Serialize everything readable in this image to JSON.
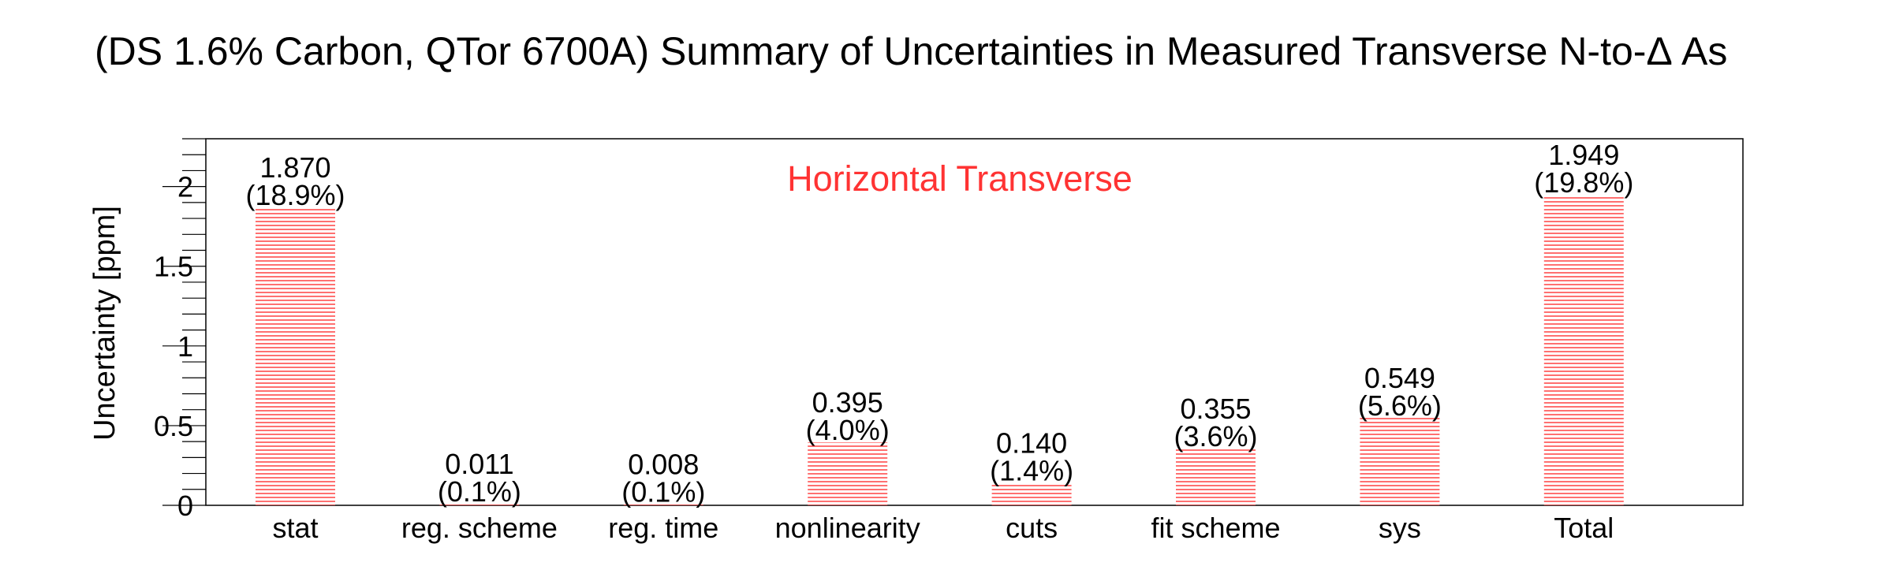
{
  "chart_data": {
    "type": "bar",
    "title": "(DS 1.6% Carbon, QTor 6700A) Summary of Uncertainties in Measured Transverse N-to-Δ As",
    "annotation": "Horizontal Transverse",
    "ylabel": "Uncertainty [ppm]",
    "xlabel": "",
    "ylim": [
      0,
      2.3
    ],
    "y_ticks": [
      "0",
      "0.5",
      "1",
      "1.5",
      "2"
    ],
    "categories": [
      "stat",
      "reg. scheme",
      "reg. time",
      "nonlinearity",
      "cuts",
      "fit scheme",
      "sys",
      "Total"
    ],
    "values": [
      1.87,
      0.011,
      0.008,
      0.395,
      0.14,
      0.355,
      0.549,
      1.949
    ],
    "value_labels": [
      "1.870",
      "0.011",
      "0.008",
      "0.395",
      "0.140",
      "0.355",
      "0.549",
      "1.949"
    ],
    "percent_labels": [
      "(18.9%)",
      "(0.1%)",
      "(0.1%)",
      "(4.0%)",
      "(1.4%)",
      "(3.6%)",
      "(5.6%)",
      "(19.8%)"
    ],
    "bar_color": "#ff3333",
    "annotation_color": "#ff3333",
    "bar_fill": "horizontal-hatch",
    "legend": "none",
    "grid": false
  }
}
